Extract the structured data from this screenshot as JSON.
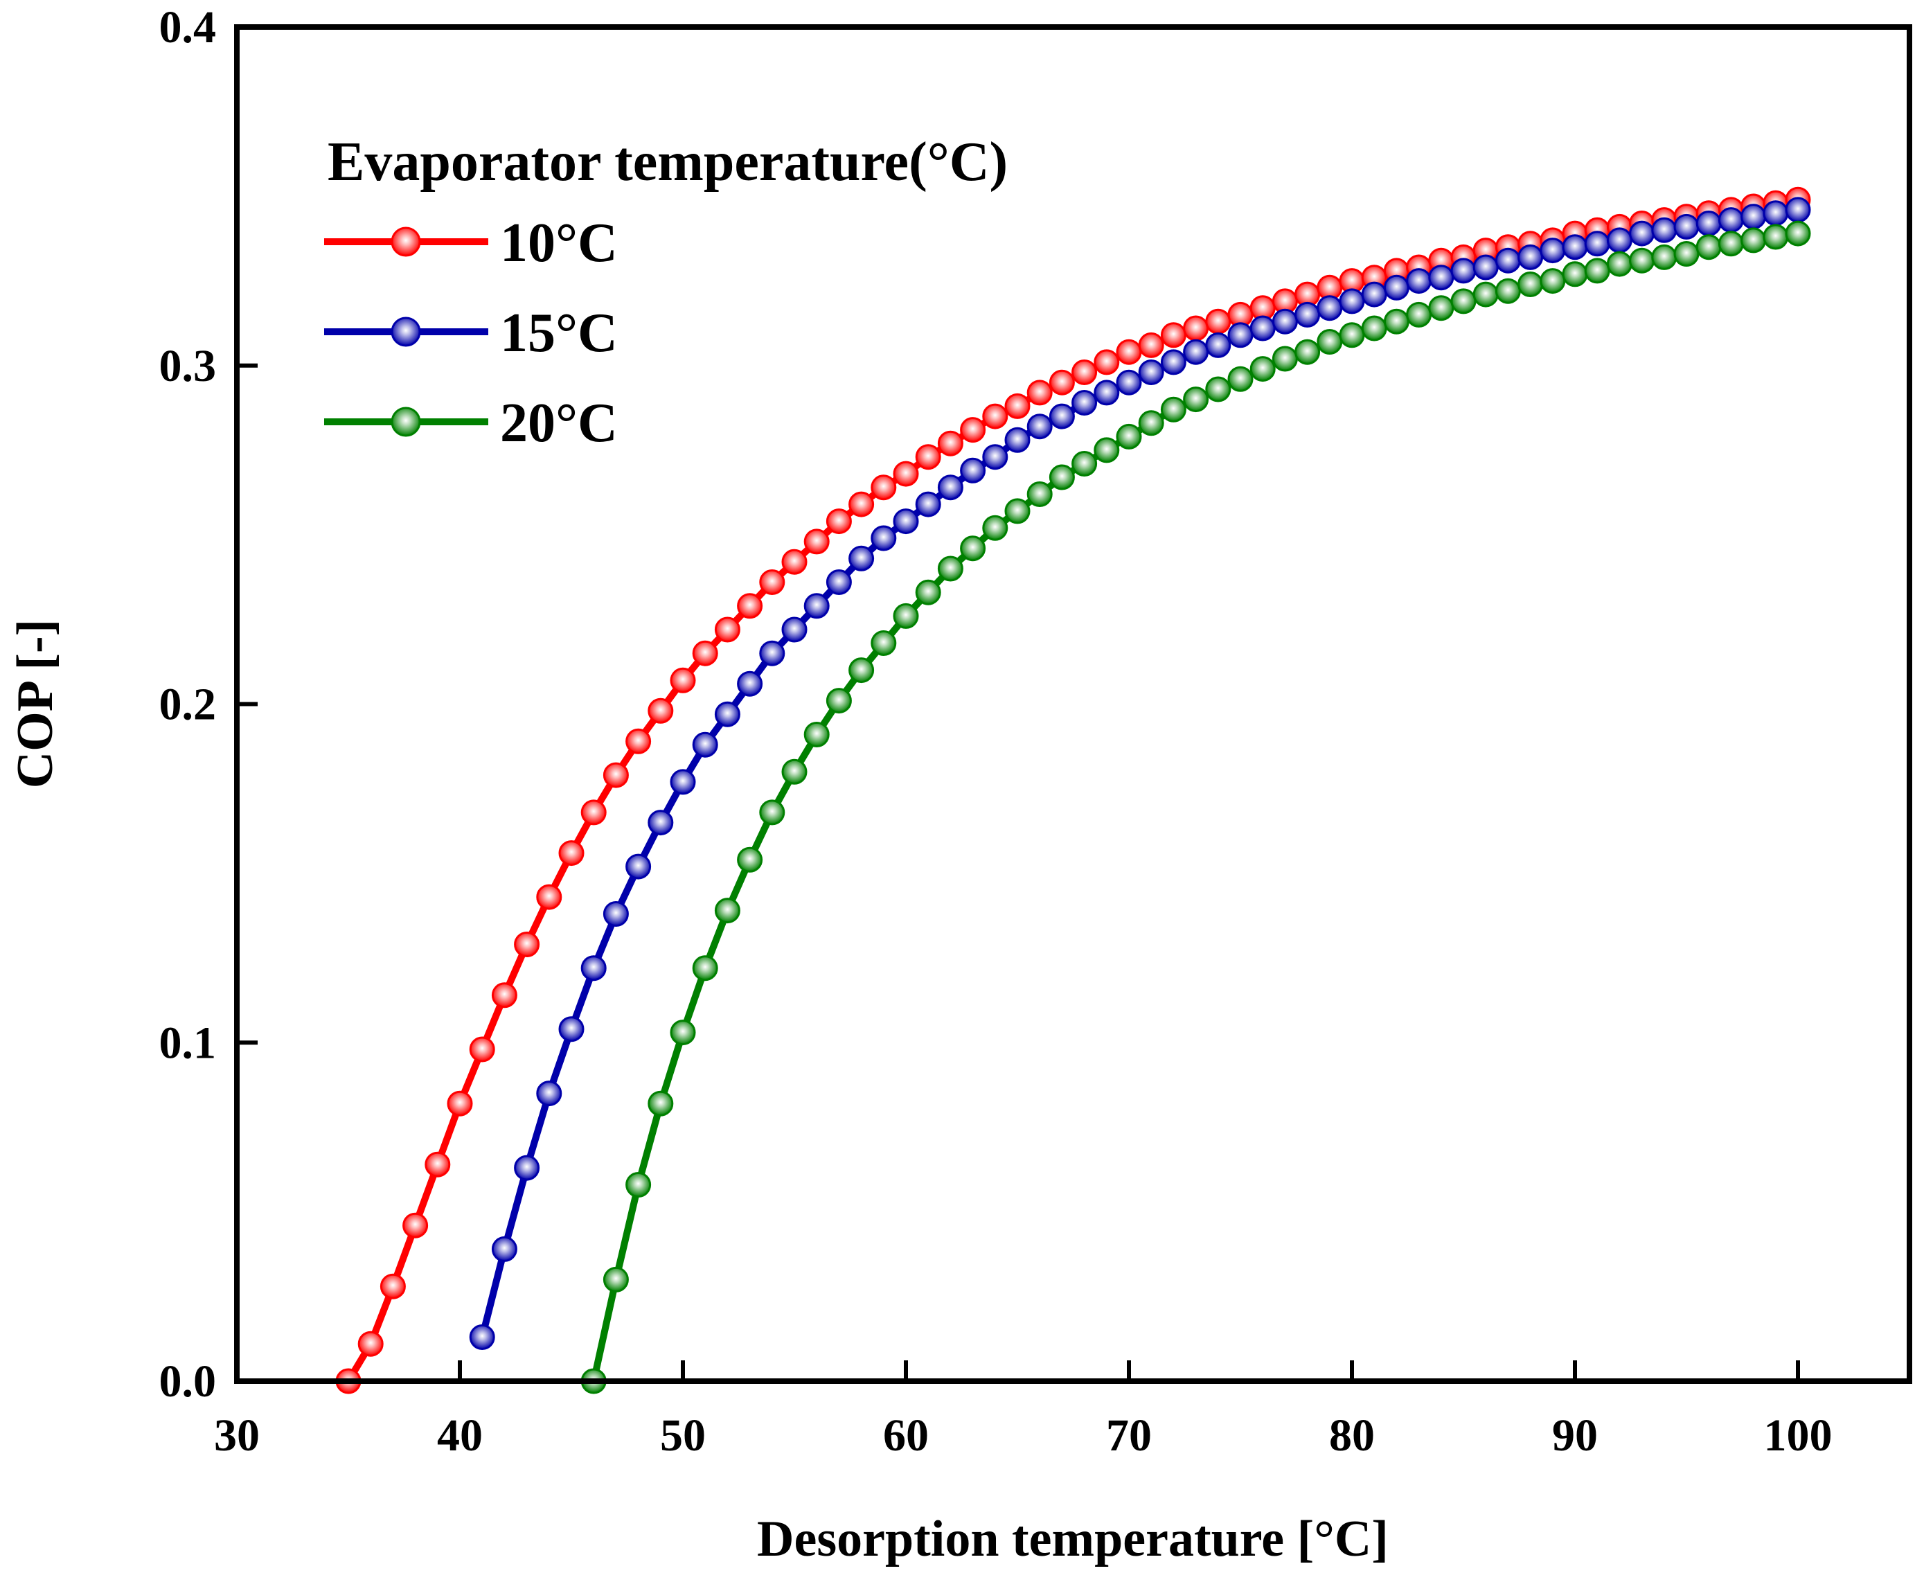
{
  "chart_data": {
    "type": "line",
    "xlabel": "Desorption temperature [°C]",
    "ylabel": "COP [-]",
    "xlim": [
      30,
      105
    ],
    "ylim": [
      0.0,
      0.4
    ],
    "xticks": [
      30,
      40,
      50,
      60,
      70,
      80,
      90,
      100
    ],
    "xtick_labels": [
      "30",
      "40",
      "50",
      "60",
      "70",
      "80",
      "90",
      "100"
    ],
    "yticks": [
      0.0,
      0.1,
      0.2,
      0.3,
      0.4
    ],
    "ytick_labels": [
      "0.0",
      "0.1",
      "0.2",
      "0.3",
      "0.4"
    ],
    "grid": false,
    "legend": {
      "title": "Evaporator temperature(°C)",
      "position": "top-left"
    },
    "series": [
      {
        "name": "10°C",
        "color": "#ff0000",
        "x": [
          35,
          36,
          37,
          38,
          39,
          40,
          41,
          42,
          43,
          44,
          45,
          46,
          47,
          48,
          49,
          50,
          51,
          52,
          53,
          54,
          55,
          56,
          57,
          58,
          59,
          60,
          61,
          62,
          63,
          64,
          65,
          66,
          67,
          68,
          69,
          70,
          71,
          72,
          73,
          74,
          75,
          76,
          77,
          78,
          79,
          80,
          81,
          82,
          83,
          84,
          85,
          86,
          87,
          88,
          89,
          90,
          91,
          92,
          93,
          94,
          95,
          96,
          97,
          98,
          99,
          100
        ],
        "y": [
          0.0,
          0.011,
          0.028,
          0.046,
          0.064,
          0.082,
          0.098,
          0.114,
          0.129,
          0.143,
          0.156,
          0.168,
          0.179,
          0.189,
          0.198,
          0.207,
          0.215,
          0.222,
          0.229,
          0.236,
          0.242,
          0.248,
          0.254,
          0.259,
          0.264,
          0.268,
          0.273,
          0.277,
          0.281,
          0.285,
          0.288,
          0.292,
          0.295,
          0.298,
          0.301,
          0.304,
          0.306,
          0.309,
          0.311,
          0.313,
          0.315,
          0.317,
          0.319,
          0.321,
          0.323,
          0.325,
          0.326,
          0.328,
          0.329,
          0.331,
          0.332,
          0.334,
          0.335,
          0.336,
          0.337,
          0.339,
          0.34,
          0.341,
          0.342,
          0.343,
          0.344,
          0.345,
          0.346,
          0.347,
          0.348,
          0.349
        ]
      },
      {
        "name": "15°C",
        "color": "#0000aa",
        "x": [
          41,
          42,
          43,
          44,
          45,
          46,
          47,
          48,
          49,
          50,
          51,
          52,
          53,
          54,
          55,
          56,
          57,
          58,
          59,
          60,
          61,
          62,
          63,
          64,
          65,
          66,
          67,
          68,
          69,
          70,
          71,
          72,
          73,
          74,
          75,
          76,
          77,
          78,
          79,
          80,
          81,
          82,
          83,
          84,
          85,
          86,
          87,
          88,
          89,
          90,
          91,
          92,
          93,
          94,
          95,
          96,
          97,
          98,
          99,
          100
        ],
        "y": [
          0.013,
          0.039,
          0.063,
          0.085,
          0.104,
          0.122,
          0.138,
          0.152,
          0.165,
          0.177,
          0.188,
          0.197,
          0.206,
          0.215,
          0.222,
          0.229,
          0.236,
          0.243,
          0.249,
          0.254,
          0.259,
          0.264,
          0.269,
          0.273,
          0.278,
          0.282,
          0.285,
          0.289,
          0.292,
          0.295,
          0.298,
          0.301,
          0.304,
          0.306,
          0.309,
          0.311,
          0.313,
          0.315,
          0.317,
          0.319,
          0.321,
          0.323,
          0.325,
          0.326,
          0.328,
          0.329,
          0.331,
          0.332,
          0.334,
          0.335,
          0.336,
          0.337,
          0.339,
          0.34,
          0.341,
          0.342,
          0.343,
          0.344,
          0.345,
          0.346
        ]
      },
      {
        "name": "20°C",
        "color": "#008000",
        "x": [
          46,
          47,
          48,
          49,
          50,
          51,
          52,
          53,
          54,
          55,
          56,
          57,
          58,
          59,
          60,
          61,
          62,
          63,
          64,
          65,
          66,
          67,
          68,
          69,
          70,
          71,
          72,
          73,
          74,
          75,
          76,
          77,
          78,
          79,
          80,
          81,
          82,
          83,
          84,
          85,
          86,
          87,
          88,
          89,
          90,
          91,
          92,
          93,
          94,
          95,
          96,
          97,
          98,
          99,
          100
        ],
        "y": [
          0.0,
          0.03,
          0.058,
          0.082,
          0.103,
          0.122,
          0.139,
          0.154,
          0.168,
          0.18,
          0.191,
          0.201,
          0.21,
          0.218,
          0.226,
          0.233,
          0.24,
          0.246,
          0.252,
          0.257,
          0.262,
          0.267,
          0.271,
          0.275,
          0.279,
          0.283,
          0.287,
          0.29,
          0.293,
          0.296,
          0.299,
          0.302,
          0.304,
          0.307,
          0.309,
          0.311,
          0.313,
          0.315,
          0.317,
          0.319,
          0.321,
          0.322,
          0.324,
          0.325,
          0.327,
          0.328,
          0.33,
          0.331,
          0.332,
          0.333,
          0.335,
          0.336,
          0.337,
          0.338,
          0.339
        ]
      }
    ]
  }
}
